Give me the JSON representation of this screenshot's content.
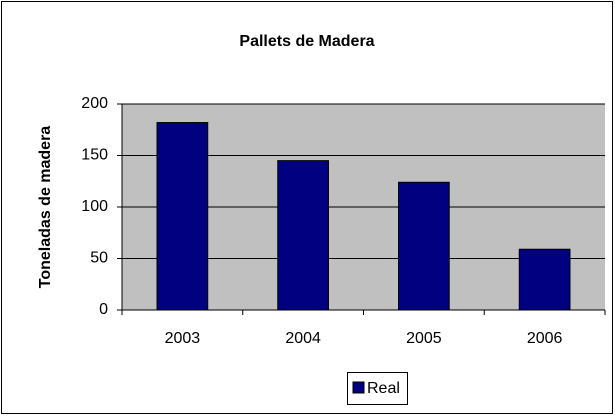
{
  "chart_data": {
    "type": "bar",
    "title": "Pallets de Madera",
    "y_label": "Toneladas de madera",
    "categories": [
      "2003",
      "2004",
      "2005",
      "2006"
    ],
    "series": [
      {
        "name": "Real",
        "color": "#000080",
        "values": [
          182,
          145,
          124,
          59
        ]
      }
    ],
    "ylim": [
      0,
      200
    ],
    "yticks": [
      0,
      50,
      100,
      150,
      200
    ],
    "grid": true,
    "legend": "bottom"
  }
}
